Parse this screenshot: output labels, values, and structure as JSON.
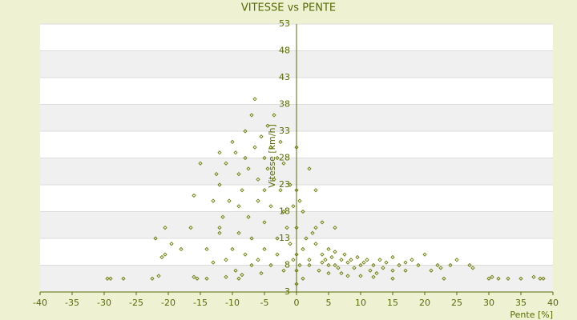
{
  "chart_data": {
    "type": "scatter",
    "title": "VITESSE vs PENTE",
    "x_label": "Pente [%]",
    "y_label": "Vitesse [km/h]",
    "color": "#6b7a00",
    "xlim": [
      -40,
      40
    ],
    "xticks": [
      -40,
      -35,
      -30,
      -25,
      -20,
      -15,
      -10,
      -5,
      0,
      5,
      10,
      15,
      20,
      25,
      30,
      35,
      40
    ],
    "ylim": [
      3,
      53
    ],
    "yticks": [
      3,
      8,
      13,
      18,
      23,
      28,
      33,
      38,
      43,
      48,
      53
    ],
    "x": [
      -29.5,
      -29,
      -27,
      -22.5,
      -21.5,
      -16,
      -15.5,
      -14,
      -11,
      -9,
      -8.5,
      30,
      30.5,
      31.5,
      33,
      35,
      37,
      38,
      38.5,
      23,
      -22,
      -20.5,
      -19.5,
      -18,
      -16.5,
      -16,
      -15,
      -21,
      -20.5,
      -14,
      -13,
      -12,
      -12,
      -12.5,
      -12,
      -11,
      -10.5,
      -10,
      -9.5,
      -9,
      -9,
      -8.5,
      -8,
      -8,
      -7.5,
      -7.5,
      -7,
      -6.5,
      -6.5,
      -6,
      -6,
      -5.5,
      -5,
      -5,
      -5,
      -4.5,
      -4.5,
      -4,
      -4,
      -3.5,
      -3.5,
      -3,
      -3,
      -2.5,
      -2.5,
      -2,
      -2,
      -1.5,
      -1,
      -1,
      -0.5,
      -0.5,
      -10,
      -9,
      -8,
      -7,
      -6,
      -5,
      -4,
      -3,
      -2,
      -11,
      -9.5,
      -7,
      -5.5,
      -12,
      -13,
      -11.5,
      0,
      0,
      0,
      0,
      0,
      0,
      0.5,
      0.5,
      1,
      1,
      1.5,
      2,
      2,
      3,
      3,
      3.5,
      4,
      4,
      4.5,
      5,
      5,
      5.5,
      6,
      6,
      6.5,
      6,
      7,
      7,
      7.5,
      8,
      8.5,
      9,
      9.5,
      10,
      10.5,
      11,
      11.5,
      12,
      12.5,
      13,
      13.5,
      14,
      15,
      15,
      16,
      17,
      17,
      18,
      19,
      20,
      21,
      22,
      22.5,
      24,
      25,
      27,
      27.5,
      3,
      4,
      2.5,
      1,
      2,
      5,
      8,
      10,
      12,
      15
    ],
    "values": [
      5.5,
      5.5,
      5.5,
      5.5,
      6,
      5.8,
      5.5,
      5.5,
      5.8,
      5.5,
      6.2,
      5.5,
      5.8,
      5.5,
      5.5,
      5.5,
      5.8,
      5.5,
      5.5,
      5.5,
      13,
      15,
      12,
      11,
      15,
      21,
      27,
      9.5,
      10,
      11,
      8.5,
      14,
      23,
      25,
      29,
      27,
      20,
      31,
      29,
      25,
      19,
      22,
      33,
      28,
      17,
      26,
      36,
      39,
      30,
      24,
      20,
      32,
      28,
      22,
      16,
      34,
      26,
      30,
      19,
      36,
      24,
      28,
      13,
      31,
      22,
      18,
      27,
      15,
      23,
      12,
      19,
      9,
      11,
      14,
      10,
      13,
      9,
      11,
      8,
      10,
      7,
      9,
      7,
      8,
      6.5,
      15,
      20,
      17,
      30,
      22,
      15,
      10,
      7,
      4.5,
      20,
      8,
      18,
      11,
      13,
      26,
      9,
      22,
      12,
      7,
      10,
      8.5,
      9,
      11,
      8,
      9.5,
      8,
      10.5,
      7.5,
      15,
      9,
      6.5,
      10,
      8.5,
      9,
      7.5,
      9.5,
      8,
      8.5,
      9,
      7,
      8,
      6.5,
      9,
      7.5,
      8.5,
      7,
      9.5,
      8,
      8.5,
      7,
      9,
      8,
      10,
      7,
      8,
      7.5,
      8,
      9,
      8,
      7.5,
      15,
      16,
      14,
      5.5,
      8,
      6.5,
      6,
      6,
      5.8,
      5.5
    ]
  }
}
